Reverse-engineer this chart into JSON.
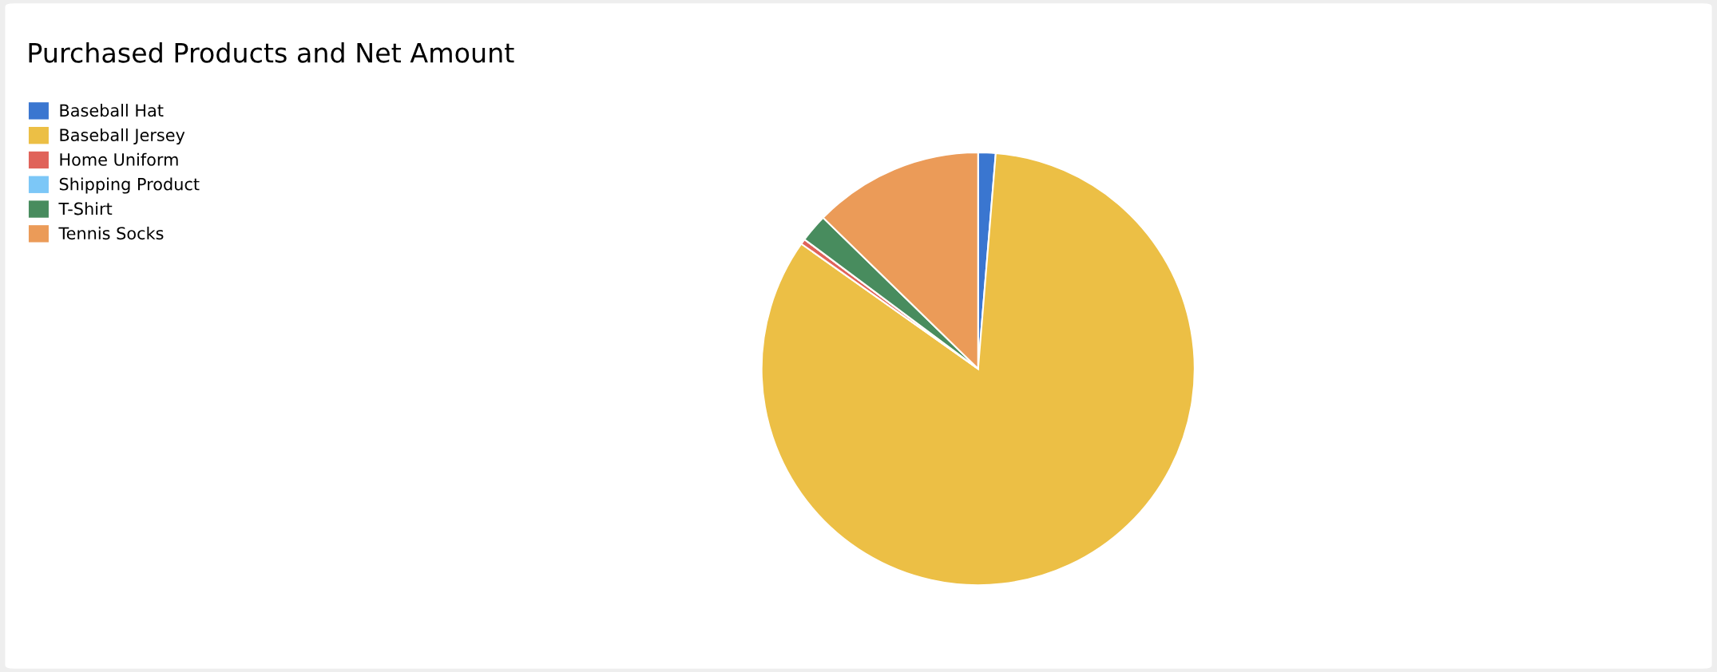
{
  "chart_data": {
    "type": "pie",
    "title": "Purchased Products and Net Amount",
    "categories": [
      "Baseball Hat",
      "Baseball Jersey",
      "Home Uniform",
      "Shipping Product",
      "T-Shirt",
      "Tennis Socks"
    ],
    "values": [
      1.3,
      83.5,
      0.4,
      0,
      2.1,
      12.7
    ],
    "colors": [
      "#3a76d0",
      "#ecbf45",
      "#e0635a",
      "#7cc7f7",
      "#488c5e",
      "#eb9b58"
    ],
    "legend": "top left"
  }
}
